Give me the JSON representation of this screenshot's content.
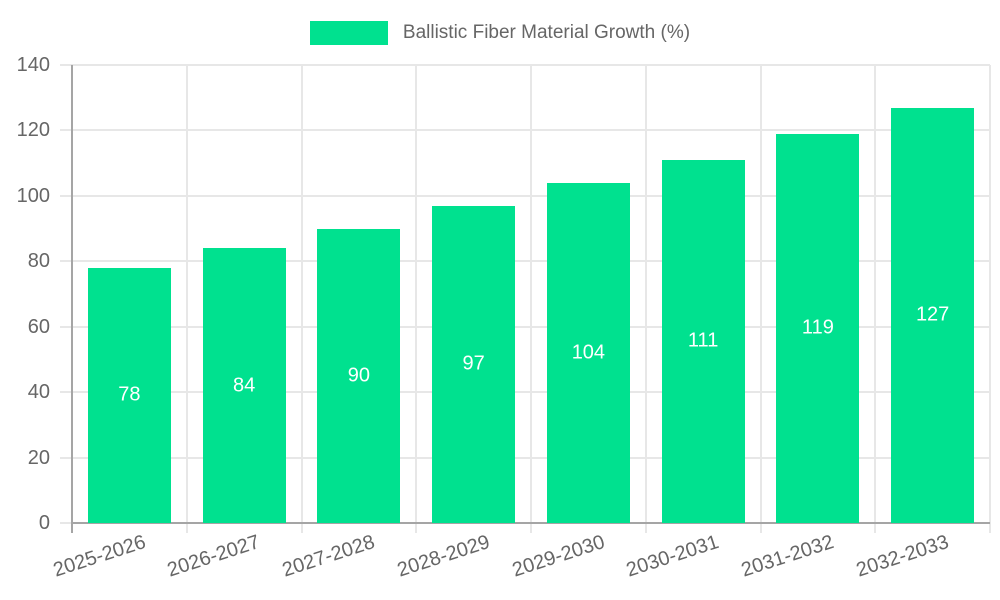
{
  "chart_data": {
    "type": "bar",
    "title": "Ballistic Fiber Material Growth (%)",
    "categories": [
      "2025-2026",
      "2026-2027",
      "2027-2028",
      "2028-2029",
      "2029-2030",
      "2030-2031",
      "2031-2032",
      "2032-2033"
    ],
    "series": [
      {
        "name": "Ballistic Fiber Material Growth (%)",
        "values": [
          78,
          84,
          90,
          97,
          104,
          111,
          119,
          127
        ]
      }
    ],
    "value_labels_shown": true,
    "xlabel": "",
    "ylabel": "",
    "ylim": [
      0,
      140
    ],
    "yticks": [
      0,
      20,
      40,
      60,
      80,
      100,
      120,
      140
    ],
    "grid": true,
    "legend_position": "top",
    "x_label_rotation_deg": -18,
    "colors": {
      "bar": "#00E18F",
      "grid": "#E7E7E7",
      "axis": "#A5A5A5",
      "tick_text": "#666666",
      "value_label_text": "#FFFFFF",
      "legend_text": "#666666",
      "background": "#FFFFFF"
    }
  }
}
